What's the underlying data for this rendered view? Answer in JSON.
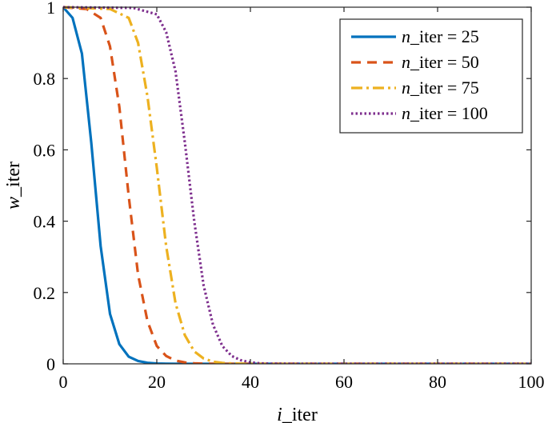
{
  "chart_data": {
    "type": "line",
    "title": "",
    "xlabel": "i_iter",
    "ylabel": "w_iter",
    "xlim": [
      0,
      100
    ],
    "ylim": [
      0,
      1
    ],
    "x_ticks": [
      0,
      20,
      40,
      60,
      80,
      100
    ],
    "y_ticks": [
      0,
      0.2,
      0.4,
      0.6,
      0.8,
      1
    ],
    "x_tick_labels": [
      "0",
      "20",
      "40",
      "60",
      "80",
      "100"
    ],
    "y_tick_labels": [
      "0",
      "0.2",
      "0.4",
      "0.6",
      "0.8",
      "1"
    ],
    "grid": false,
    "legend_position": "top-right",
    "series": [
      {
        "name": "n_iter = 25",
        "legend_italic": "n",
        "legend_rest": "_iter = 25",
        "color": "#0072BD",
        "style": "solid",
        "x": [
          0,
          2,
          4,
          6,
          8,
          10,
          12,
          14,
          16,
          18,
          20,
          22,
          25,
          100
        ],
        "y": [
          1.0,
          0.97,
          0.87,
          0.62,
          0.33,
          0.14,
          0.055,
          0.02,
          0.008,
          0.003,
          0.001,
          0.0003,
          0.0,
          0.0
        ]
      },
      {
        "name": "n_iter = 50",
        "legend_italic": "n",
        "legend_rest": "_iter = 50",
        "color": "#D95319",
        "style": "dashed",
        "x": [
          0,
          5,
          8,
          10,
          12,
          14,
          16,
          18,
          20,
          22,
          24,
          26,
          28,
          30,
          35,
          100
        ],
        "y": [
          1.0,
          0.995,
          0.97,
          0.89,
          0.72,
          0.47,
          0.25,
          0.12,
          0.05,
          0.022,
          0.009,
          0.004,
          0.0015,
          0.0005,
          0.0,
          0.0
        ]
      },
      {
        "name": "n_iter = 75",
        "legend_italic": "n",
        "legend_rest": "_iter = 75",
        "color": "#EDB120",
        "style": "dashdot",
        "x": [
          0,
          10,
          14,
          16,
          18,
          20,
          22,
          24,
          26,
          28,
          30,
          32,
          34,
          36,
          40,
          100
        ],
        "y": [
          1.0,
          0.995,
          0.97,
          0.9,
          0.75,
          0.55,
          0.33,
          0.17,
          0.08,
          0.035,
          0.015,
          0.006,
          0.0025,
          0.001,
          0.0,
          0.0
        ]
      },
      {
        "name": "n_iter = 100",
        "legend_italic": "n",
        "legend_rest": "_iter = 100",
        "color": "#7E2F8E",
        "style": "dotted",
        "x": [
          0,
          15,
          20,
          22,
          24,
          26,
          28,
          30,
          32,
          34,
          36,
          38,
          40,
          42,
          44,
          50,
          100
        ],
        "y": [
          1.0,
          0.998,
          0.98,
          0.93,
          0.82,
          0.62,
          0.4,
          0.22,
          0.11,
          0.05,
          0.022,
          0.01,
          0.004,
          0.0015,
          0.0005,
          0.0,
          0.0
        ]
      }
    ]
  }
}
